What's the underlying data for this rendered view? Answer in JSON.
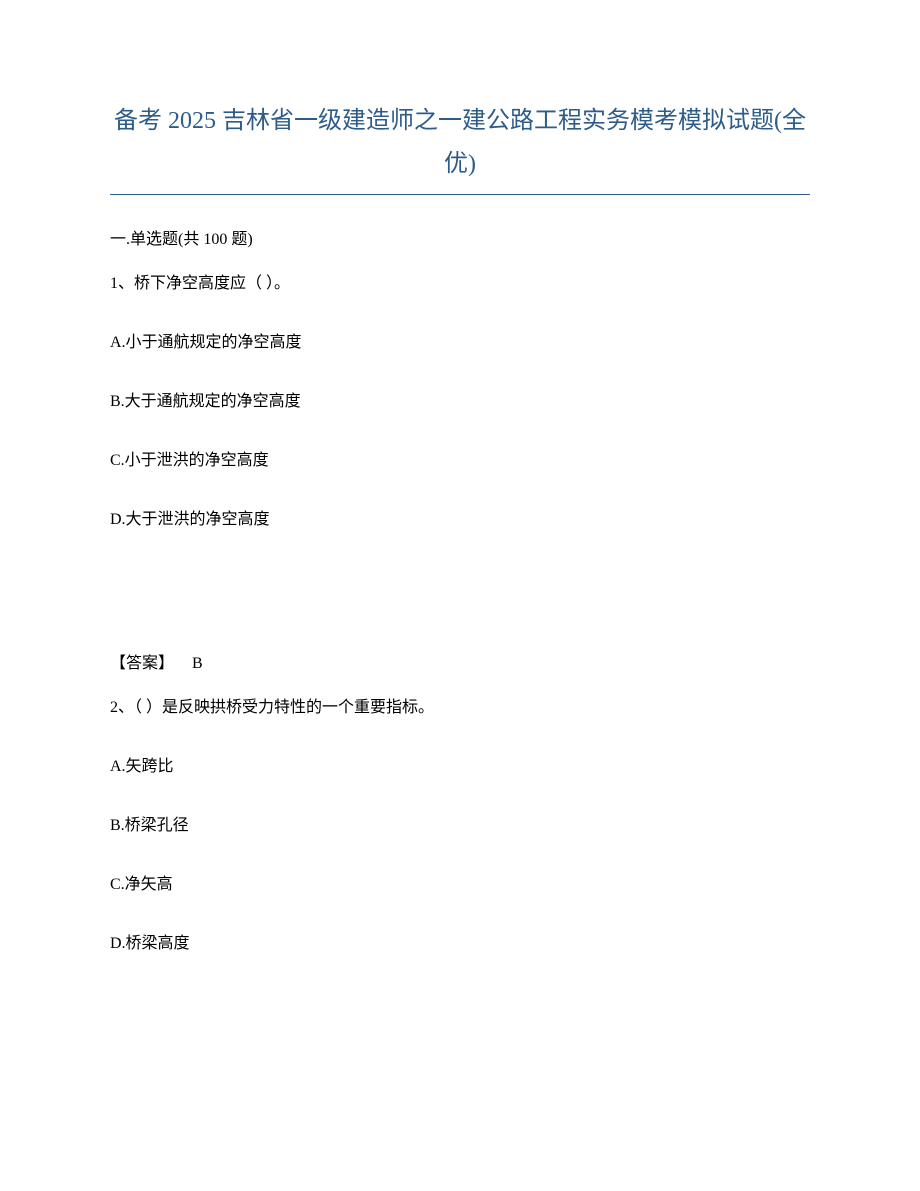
{
  "title": "备考 2025 吉林省一级建造师之一建公路工程实务模考模拟试题(全优)",
  "section_header": "一.单选题(共 100 题)",
  "question1": {
    "number_text": "1、桥下净空高度应（ ）。",
    "options": {
      "a": "A.小于通航规定的净空高度",
      "b": "B.大于通航规定的净空高度",
      "c": "C.小于泄洪的净空高度",
      "d": "D.大于泄洪的净空高度"
    },
    "answer_label": "【答案】",
    "answer_value": "B"
  },
  "question2": {
    "number_text": "2、（ ）是反映拱桥受力特性的一个重要指标。",
    "options": {
      "a": "A.矢跨比",
      "b": "B.桥梁孔径",
      "c": "C.净矢高",
      "d": "D.桥梁高度"
    }
  },
  "colors": {
    "title_color": "#2e5c8a",
    "text_color": "#000000",
    "background": "#ffffff",
    "underline_color": "#2e5c8a"
  },
  "typography": {
    "title_fontsize": 24,
    "body_fontsize": 16,
    "font_family": "SimSun"
  }
}
